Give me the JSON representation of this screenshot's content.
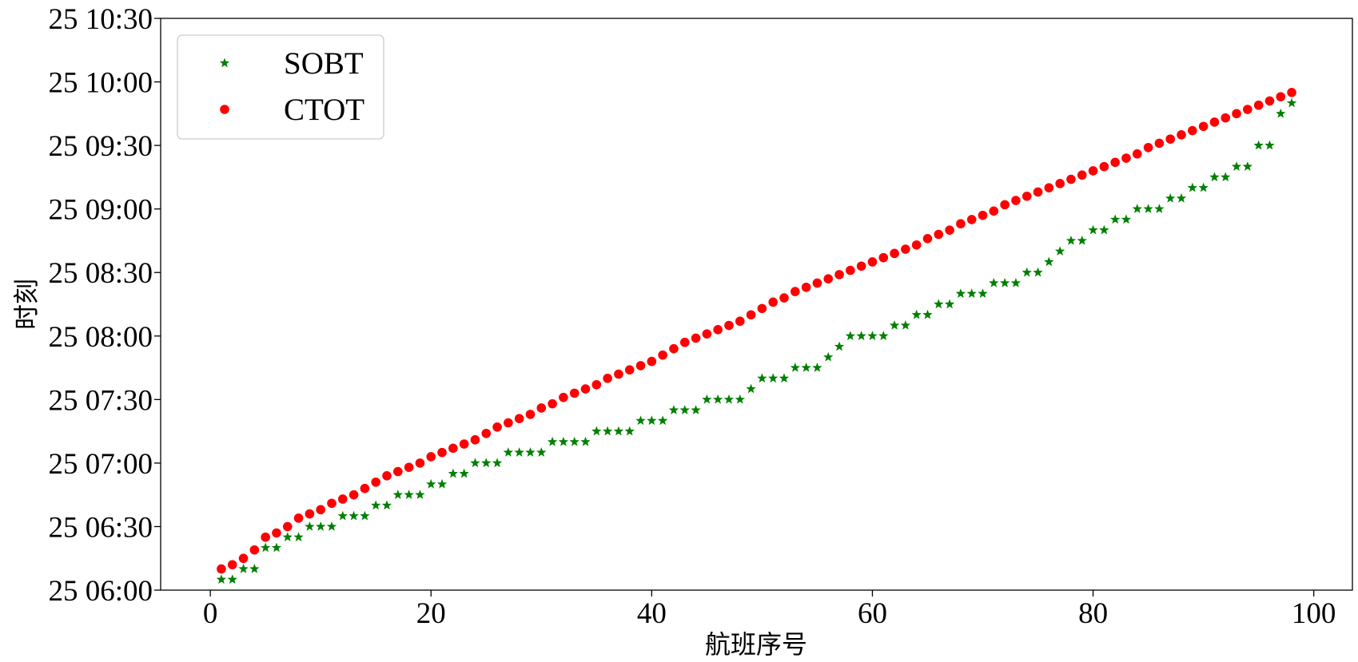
{
  "chart_data": {
    "type": "scatter",
    "title": "",
    "xlabel": "航班序号",
    "ylabel": "时刻",
    "xlim": [
      -4.5,
      103.5
    ],
    "ylim_minutes_after_0600": [
      0,
      270
    ],
    "x_ticks": [
      0,
      20,
      40,
      60,
      80,
      100
    ],
    "x_tick_labels": [
      "0",
      "20",
      "40",
      "60",
      "80",
      "100"
    ],
    "y_ticks_minutes_after_0600": [
      0,
      30,
      60,
      90,
      120,
      150,
      180,
      210,
      240,
      270
    ],
    "y_tick_labels": [
      "25 06:00",
      "25 06:30",
      "25 07:00",
      "25 07:30",
      "25 08:00",
      "25 08:30",
      "25 09:00",
      "25 09:30",
      "25 10:00",
      "25 10:30"
    ],
    "grid": false,
    "legend_position": "top-left",
    "series": [
      {
        "name": "SOBT",
        "marker": "star",
        "color": "#008000",
        "x": [
          1,
          2,
          3,
          4,
          5,
          6,
          7,
          8,
          9,
          10,
          11,
          12,
          13,
          14,
          15,
          16,
          17,
          18,
          19,
          20,
          21,
          22,
          23,
          24,
          25,
          26,
          27,
          28,
          29,
          30,
          31,
          32,
          33,
          34,
          35,
          36,
          37,
          38,
          39,
          40,
          41,
          42,
          43,
          44,
          45,
          46,
          47,
          48,
          49,
          50,
          51,
          52,
          53,
          54,
          55,
          56,
          57,
          58,
          59,
          60,
          61,
          62,
          63,
          64,
          65,
          66,
          67,
          68,
          69,
          70,
          71,
          72,
          73,
          74,
          75,
          76,
          77,
          78,
          79,
          80,
          81,
          82,
          83,
          84,
          85,
          86,
          87,
          88,
          89,
          90,
          91,
          92,
          93,
          94,
          95,
          96,
          97,
          98
        ],
        "times": [
          "06:05",
          "06:05",
          "06:10",
          "06:10",
          "06:20",
          "06:20",
          "06:25",
          "06:25",
          "06:30",
          "06:30",
          "06:30",
          "06:35",
          "06:35",
          "06:35",
          "06:40",
          "06:40",
          "06:45",
          "06:45",
          "06:45",
          "06:50",
          "06:50",
          "06:55",
          "06:55",
          "07:00",
          "07:00",
          "07:00",
          "07:05",
          "07:05",
          "07:05",
          "07:05",
          "07:10",
          "07:10",
          "07:10",
          "07:10",
          "07:15",
          "07:15",
          "07:15",
          "07:15",
          "07:20",
          "07:20",
          "07:20",
          "07:25",
          "07:25",
          "07:25",
          "07:30",
          "07:30",
          "07:30",
          "07:30",
          "07:35",
          "07:40",
          "07:40",
          "07:40",
          "07:45",
          "07:45",
          "07:45",
          "07:50",
          "07:55",
          "08:00",
          "08:00",
          "08:00",
          "08:00",
          "08:05",
          "08:05",
          "08:10",
          "08:10",
          "08:15",
          "08:15",
          "08:20",
          "08:20",
          "08:20",
          "08:25",
          "08:25",
          "08:25",
          "08:30",
          "08:30",
          "08:35",
          "08:40",
          "08:45",
          "08:45",
          "08:50",
          "08:50",
          "08:55",
          "08:55",
          "09:00",
          "09:00",
          "09:00",
          "09:05",
          "09:05",
          "09:10",
          "09:10",
          "09:15",
          "09:15",
          "09:20",
          "09:20",
          "09:30",
          "09:30",
          "09:45",
          "09:50"
        ]
      },
      {
        "name": "CTOT",
        "marker": "circle",
        "color": "#ff0000",
        "x": [
          1,
          2,
          3,
          4,
          5,
          6,
          7,
          8,
          9,
          10,
          11,
          12,
          13,
          14,
          15,
          16,
          17,
          18,
          19,
          20,
          21,
          22,
          23,
          24,
          25,
          26,
          27,
          28,
          29,
          30,
          31,
          32,
          33,
          34,
          35,
          36,
          37,
          38,
          39,
          40,
          41,
          42,
          43,
          44,
          45,
          46,
          47,
          48,
          49,
          50,
          51,
          52,
          53,
          54,
          55,
          56,
          57,
          58,
          59,
          60,
          61,
          62,
          63,
          64,
          65,
          66,
          67,
          68,
          69,
          70,
          71,
          72,
          73,
          74,
          75,
          76,
          77,
          78,
          79,
          80,
          81,
          82,
          83,
          84,
          85,
          86,
          87,
          88,
          89,
          90,
          91,
          92,
          93,
          94,
          95,
          96,
          97,
          98
        ],
        "times": [
          "06:10",
          "06:12",
          "06:15",
          "06:19",
          "06:25",
          "06:27",
          "06:30",
          "06:34",
          "06:36",
          "06:38",
          "06:41",
          "06:43",
          "06:45",
          "06:48",
          "06:51",
          "06:54",
          "06:56",
          "06:58",
          "07:00",
          "07:03",
          "07:05",
          "07:07",
          "07:09",
          "07:11",
          "07:14",
          "07:17",
          "07:19",
          "07:21",
          "07:23",
          "07:26",
          "07:28",
          "07:31",
          "07:33",
          "07:35",
          "07:37",
          "07:40",
          "07:42",
          "07:44",
          "07:46",
          "07:48",
          "07:51",
          "07:54",
          "07:57",
          "07:59",
          "08:01",
          "08:03",
          "08:05",
          "08:07",
          "08:10",
          "08:13",
          "08:16",
          "08:18",
          "08:21",
          "08:23",
          "08:25",
          "08:27",
          "08:29",
          "08:31",
          "08:33",
          "08:35",
          "08:37",
          "08:39",
          "08:41",
          "08:43",
          "08:46",
          "08:48",
          "08:50",
          "08:53",
          "08:55",
          "08:57",
          "08:59",
          "09:02",
          "09:04",
          "09:06",
          "09:08",
          "09:10",
          "09:12",
          "09:14",
          "09:16",
          "09:18",
          "09:20",
          "09:22",
          "09:24",
          "09:26",
          "09:29",
          "09:31",
          "09:33",
          "09:35",
          "09:37",
          "09:39",
          "09:41",
          "09:43",
          "09:45",
          "09:47",
          "09:49",
          "09:51",
          "09:53",
          "09:55"
        ]
      }
    ]
  }
}
